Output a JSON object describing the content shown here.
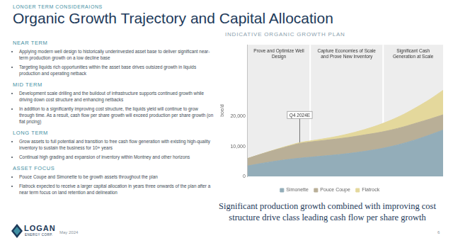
{
  "header": {
    "kicker": "LONGER TERM CONSIDERAIONS",
    "title": "Organic Growth Trajectory and Capital Allocation"
  },
  "sections": [
    {
      "heading": "NEAR TERM",
      "bullets": [
        "Applying modern well design to historically underinvested asset base to deliver significant near-term production growth on a low decline base",
        "Targeting liquids rich opportunities within the asset base drives outsized growth in liquids production and operating netback"
      ]
    },
    {
      "heading": "MID TERM",
      "bullets": [
        "Development scale drilling and the buildout of infrastructure supports continued growth while driving down cost structure and enhancing netbacks",
        "In addition to a significantly improving cost structure, the liquids yield will continue to grow through time. As a result, cash flow per share growth will exceed production per share growth (on flat pricing)"
      ]
    },
    {
      "heading": "LONG TERM",
      "bullets": [
        "Grow assets to full potential and transition to free cash flow generation with existing high-quality inventory to sustain the business for 10+ years",
        "Continual high grading and expansion of inventory within Montney and other horizons"
      ]
    },
    {
      "heading": "ASSET FOCUS",
      "bullets": [
        "Pouce Coupe and Simonette to be growth assets throughout the plan",
        "Flatrock expected to receive a larger capital allocation in years three onwards of the plan after a near term focus on land retention and delineation"
      ]
    }
  ],
  "chart_data": {
    "type": "area",
    "title": "INDICATIVE ORGANIC GROWTH PLAN",
    "y_label": "boe/d",
    "categories": [
      null,
      null,
      null,
      null,
      null,
      null,
      null,
      null,
      null,
      null,
      null,
      null,
      null,
      null,
      null,
      null
    ],
    "series": [
      {
        "name": "Simonette",
        "color": "#93adb9",
        "values": [
          3500,
          4300,
          5000,
          5600,
          6100,
          6500,
          6900,
          7300,
          7800,
          8400,
          9100,
          10000,
          11100,
          12400,
          13900,
          15500
        ]
      },
      {
        "name": "Pouce Coupe",
        "color": "#b9af97",
        "values": [
          2500,
          3100,
          3700,
          4300,
          4900,
          5100,
          5200,
          5300,
          5400,
          5500,
          5500,
          5500,
          5500,
          5500,
          5300,
          5100
        ]
      },
      {
        "name": "Flatrock",
        "color": "#e4d89c",
        "values": [
          0,
          0,
          100,
          200,
          300,
          400,
          600,
          900,
          1300,
          1800,
          2500,
          3300,
          4200,
          5300,
          6600,
          8200
        ]
      }
    ],
    "stacked": true,
    "ylim": [
      0,
      44000
    ],
    "yticks": [
      0,
      {
        "value": 10000,
        "label": "10,000"
      },
      {
        "value": 20000,
        "label": "20,000"
      }
    ],
    "grid": false,
    "legend": "bottom",
    "tick_labels": "y",
    "phases": [
      {
        "label": "Prove and Optimize Well Design",
        "start": 0,
        "end": 4.8
      },
      {
        "label": "Capture Economies of Scale and Prove New Inventory",
        "start": 4.8,
        "end": 10.4
      },
      {
        "label": "Significant Cash Generation at Scale",
        "start": 10.4,
        "end": 15
      }
    ],
    "annotations": [
      {
        "text": "Q4 2024E",
        "x": 4
      }
    ]
  },
  "tagline": "Significant production growth combined with improving cost structure drive class leading cash flow per share growth",
  "footer": {
    "logo": "LOGAN",
    "logo_sub": "ENERGY CORP.",
    "date": "May 2024",
    "page": 6
  }
}
